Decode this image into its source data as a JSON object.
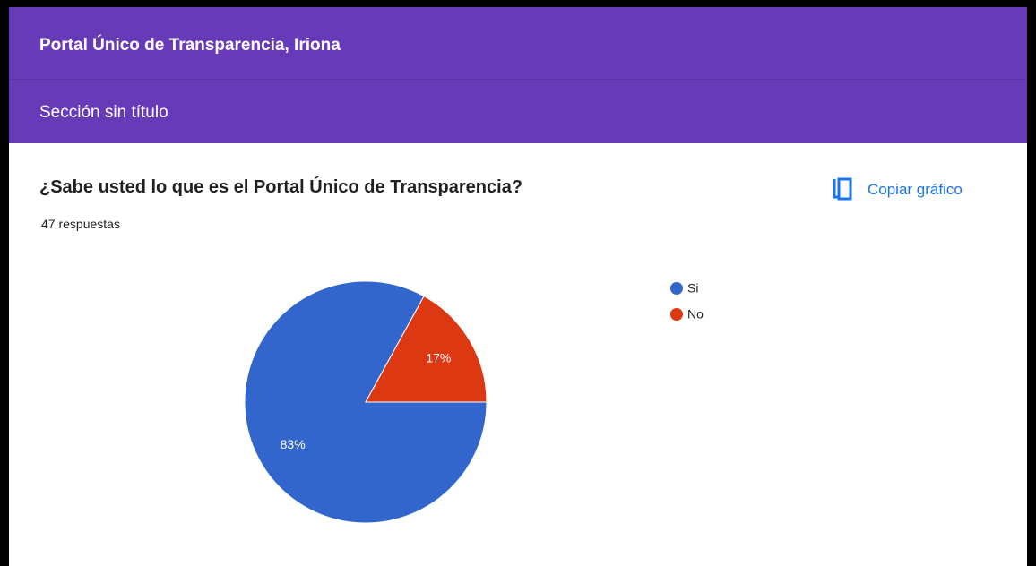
{
  "header": {
    "title": "Portal Único de Transparencia, Iriona",
    "section": "Sección sin título"
  },
  "question": {
    "title": "¿Sabe usted lo que es el Portal Único de Transparencia?",
    "responses": "47 respuestas",
    "copy_button": "Copiar gráfico"
  },
  "chart_data": {
    "type": "pie",
    "categories": [
      "Si",
      "No"
    ],
    "values": [
      83,
      17
    ],
    "value_labels": [
      "83%",
      "17%"
    ],
    "colors": [
      "#3366cc",
      "#dc3912"
    ]
  }
}
